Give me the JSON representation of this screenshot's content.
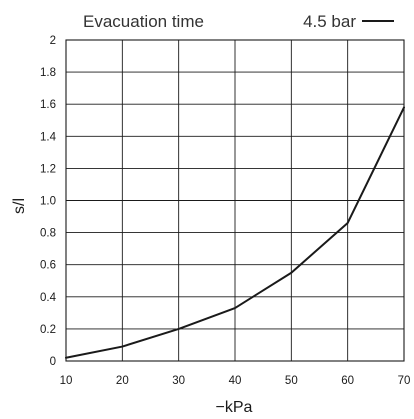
{
  "chart_data": {
    "type": "line",
    "title": "Evacuation time",
    "xlabel": "−kPa",
    "ylabel": "s/l",
    "xlim": [
      10,
      70
    ],
    "ylim": [
      0,
      2
    ],
    "grid": true,
    "legend_placement": "top-right",
    "x_ticks": [
      10,
      20,
      30,
      40,
      50,
      60,
      70
    ],
    "y_ticks": [
      0,
      0.2,
      0.4,
      0.6,
      0.8,
      1.0,
      1.2,
      1.4,
      1.6,
      1.8,
      2
    ],
    "x_tick_labels": [
      "10",
      "20",
      "30",
      "40",
      "50",
      "60",
      "70"
    ],
    "y_tick_labels": [
      "0",
      "0.2",
      "0.4",
      "0.6",
      "0.8",
      "1.0",
      "1.2",
      "1.4",
      "1.6",
      "1.8",
      "2"
    ],
    "series": [
      {
        "name": "4.5 bar",
        "color": "#1a1a1a",
        "x": [
          10,
          20,
          30,
          40,
          50,
          60,
          70
        ],
        "values": [
          0.02,
          0.09,
          0.2,
          0.33,
          0.55,
          0.86,
          1.58
        ]
      }
    ]
  }
}
